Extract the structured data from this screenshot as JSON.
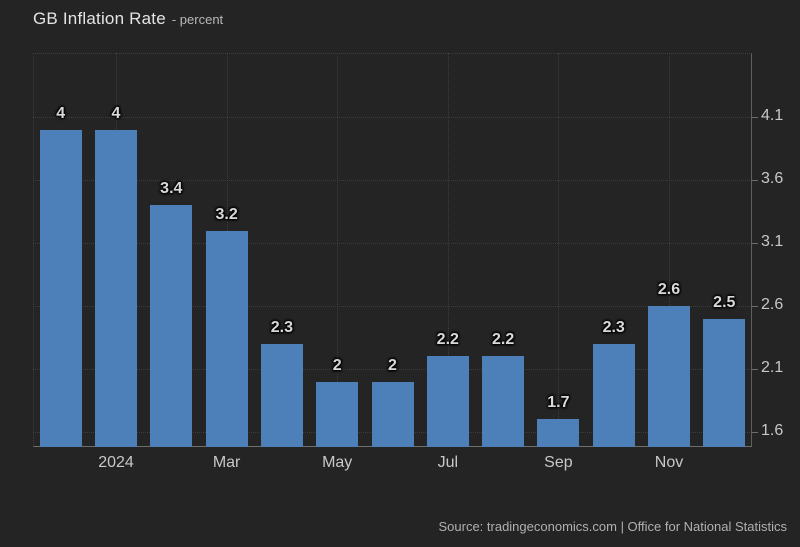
{
  "header": {
    "title": "GB Inflation Rate",
    "subtitle": "- percent"
  },
  "footer": {
    "source": "Source: tradingeconomics.com | Office for National Statistics"
  },
  "colors": {
    "background": "#242424",
    "bar": "#4d80b9",
    "grid": "#3d3d3d",
    "axis": "#6e6e6e",
    "title_text": "#e4e4e4",
    "tick_text": "#c8c8c8",
    "bar_label_text": "#d9d9d9",
    "source_text": "#b0b0b0"
  },
  "chart_data": {
    "type": "bar",
    "title": "GB Inflation Rate",
    "ylabel": "percent",
    "values": [
      4,
      4,
      3.4,
      3.2,
      2.3,
      2,
      2,
      2.2,
      2.2,
      1.7,
      2.3,
      2.6,
      2.5
    ],
    "bar_labels": [
      "4",
      "4",
      "3.4",
      "3.2",
      "2.3",
      "2",
      "2",
      "2.2",
      "2.2",
      "1.7",
      "2.3",
      "2.6",
      "2.5"
    ],
    "x_tick_labels": [
      {
        "label": "2024",
        "bar_index": 1
      },
      {
        "label": "Mar",
        "bar_index": 3
      },
      {
        "label": "May",
        "bar_index": 5
      },
      {
        "label": "Jul",
        "bar_index": 7
      },
      {
        "label": "Sep",
        "bar_index": 9
      },
      {
        "label": "Nov",
        "bar_index": 11
      }
    ],
    "y_ticks": [
      4.1,
      3.6,
      3.1,
      2.6,
      2.1,
      1.6
    ],
    "y_tick_labels": [
      "4.1",
      "3.6",
      "3.1",
      "2.6",
      "2.1",
      "1.6"
    ],
    "y_range": [
      1.48,
      4.61
    ],
    "y_axis_position": "right",
    "grid": "dotted",
    "legend": "none",
    "bar_color": "#4d80b9"
  }
}
